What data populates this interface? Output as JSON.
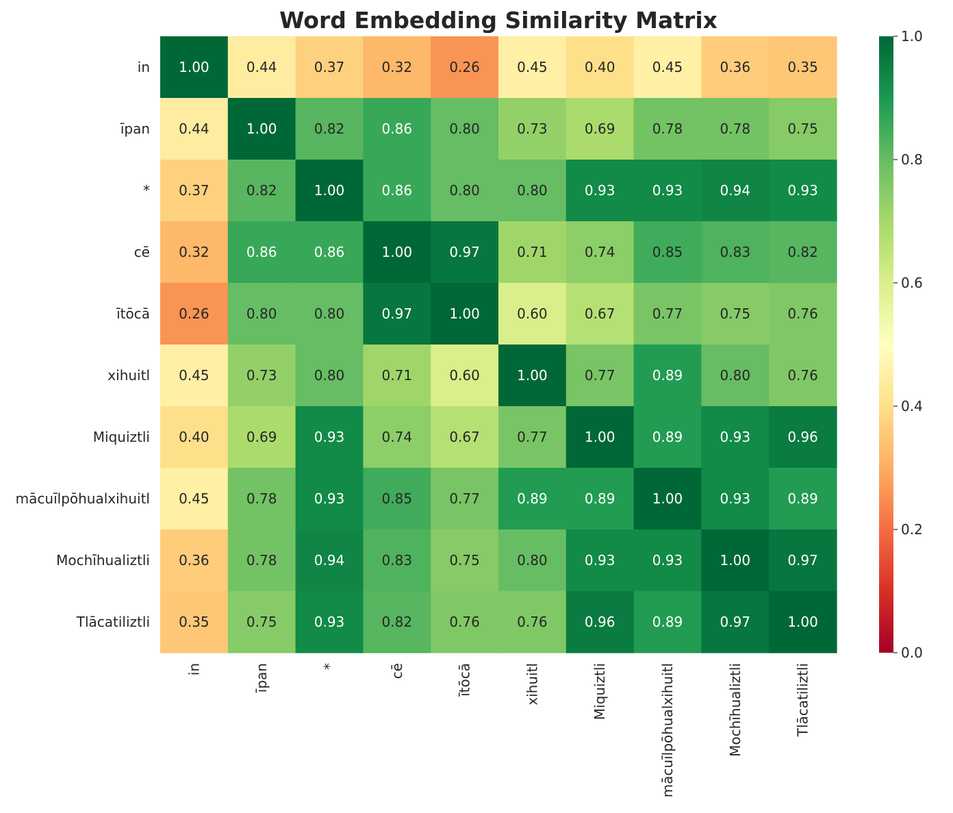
{
  "chart_data": {
    "type": "heatmap",
    "title": "Word Embedding Similarity Matrix",
    "rows": [
      "in",
      "īpan",
      "*",
      "cē",
      "ītōcā",
      "xihuitl",
      "Miquiztli",
      "mācuīlpōhualxihuitl",
      "Mochīhualiztli",
      "Tlācatiliztli"
    ],
    "columns": [
      "in",
      "īpan",
      "*",
      "cē",
      "ītōcā",
      "xihuitl",
      "Miquiztli",
      "mācuīlpōhualxihuitl",
      "Mochīhualiztli",
      "Tlācatiliztli"
    ],
    "values": [
      [
        1.0,
        0.44,
        0.37,
        0.32,
        0.26,
        0.45,
        0.4,
        0.45,
        0.36,
        0.35
      ],
      [
        0.44,
        1.0,
        0.82,
        0.86,
        0.8,
        0.73,
        0.69,
        0.78,
        0.78,
        0.75
      ],
      [
        0.37,
        0.82,
        1.0,
        0.86,
        0.8,
        0.8,
        0.93,
        0.93,
        0.94,
        0.93
      ],
      [
        0.32,
        0.86,
        0.86,
        1.0,
        0.97,
        0.71,
        0.74,
        0.85,
        0.83,
        0.82
      ],
      [
        0.26,
        0.8,
        0.8,
        0.97,
        1.0,
        0.6,
        0.67,
        0.77,
        0.75,
        0.76
      ],
      [
        0.45,
        0.73,
        0.8,
        0.71,
        0.6,
        1.0,
        0.77,
        0.89,
        0.8,
        0.76
      ],
      [
        0.4,
        0.69,
        0.93,
        0.74,
        0.67,
        0.77,
        1.0,
        0.89,
        0.93,
        0.96
      ],
      [
        0.45,
        0.78,
        0.93,
        0.85,
        0.77,
        0.89,
        0.89,
        1.0,
        0.93,
        0.89
      ],
      [
        0.36,
        0.78,
        0.94,
        0.83,
        0.75,
        0.8,
        0.93,
        0.93,
        1.0,
        0.97
      ],
      [
        0.35,
        0.75,
        0.93,
        0.82,
        0.76,
        0.76,
        0.96,
        0.89,
        0.97,
        1.0
      ]
    ],
    "value_format": "0.00",
    "colormap": "RdYlGn",
    "vmin": 0.0,
    "vmax": 1.0,
    "colorbar": {
      "ticks": [
        0.0,
        0.2,
        0.4,
        0.6,
        0.8,
        1.0
      ],
      "tick_labels": [
        "0.0",
        "0.2",
        "0.4",
        "0.6",
        "0.8",
        "1.0"
      ],
      "position": "right"
    },
    "xlabel": "",
    "ylabel": "",
    "grid": false
  }
}
